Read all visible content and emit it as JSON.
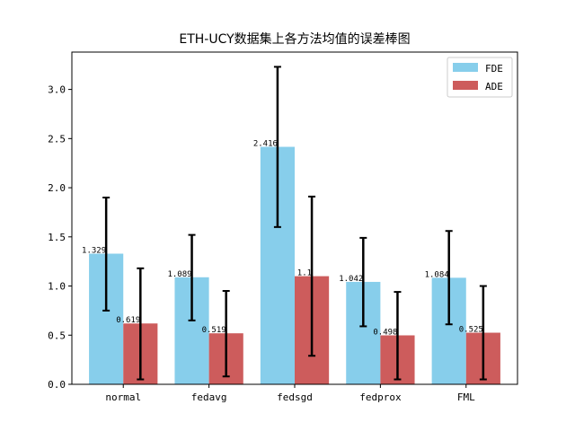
{
  "chart_data": {
    "type": "bar",
    "title": "ETH-UCY数据集上各方法均值的误差棒图",
    "xlabel": "",
    "ylabel": "",
    "categories": [
      "normal",
      "fedavg",
      "fedsgd",
      "fedprox",
      "FML"
    ],
    "ylim": [
      0,
      3.38
    ],
    "yticks": [
      "0.0",
      "0.5",
      "1.0",
      "1.5",
      "2.0",
      "2.5",
      "3.0"
    ],
    "grid": false,
    "legend_position": "top-right",
    "series": [
      {
        "name": "FDE",
        "color": "#87ceeb",
        "values": [
          1.329,
          1.089,
          2.416,
          1.042,
          1.084
        ],
        "labels": [
          "1.329",
          "1.089",
          "2.416",
          "1.042",
          "1.084"
        ],
        "error_low": [
          0.75,
          0.65,
          1.6,
          0.59,
          0.61
        ],
        "error_high": [
          1.9,
          1.52,
          3.23,
          1.49,
          1.56
        ]
      },
      {
        "name": "ADE",
        "color": "#cd5c5c",
        "values": [
          0.619,
          0.519,
          1.1,
          0.498,
          0.525
        ],
        "labels": [
          "0.619",
          "0.519",
          "1.1",
          "0.498",
          "0.525"
        ],
        "error_low": [
          0.05,
          0.08,
          0.29,
          0.05,
          0.05
        ],
        "error_high": [
          1.18,
          0.95,
          1.91,
          0.94,
          1.0
        ]
      }
    ]
  }
}
